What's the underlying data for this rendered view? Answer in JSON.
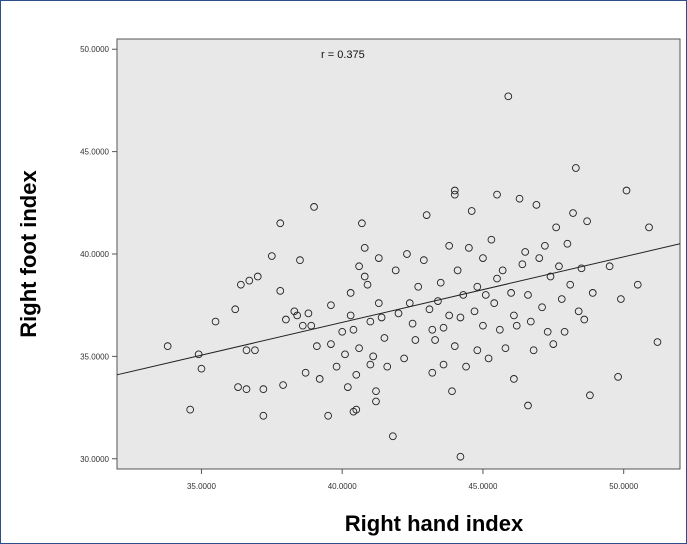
{
  "chart_data": {
    "type": "scatter",
    "title": "",
    "xlabel": "Right hand index",
    "ylabel": "Right foot index",
    "annotation": "r = 0.375",
    "xlim": [
      32,
      52
    ],
    "ylim": [
      29.5,
      50.5
    ],
    "xticks": [
      35,
      40,
      45,
      50
    ],
    "yticks": [
      30,
      35,
      40,
      45,
      50
    ],
    "xtick_labels": [
      "35.0000",
      "40.0000",
      "45.0000",
      "50.0000"
    ],
    "ytick_labels": [
      "30.0000",
      "35.0000",
      "40.0000",
      "45.0000",
      "50.0000"
    ],
    "grid": false,
    "fit_line": {
      "x": [
        32,
        52
      ],
      "y": [
        34.1,
        40.5
      ]
    },
    "colors": {
      "plot_bg": "#e8e8e8",
      "marker": "#222222",
      "line": "#222222",
      "frame": "#2c4f8c"
    },
    "points": [
      [
        33.8,
        35.5
      ],
      [
        34.6,
        32.4
      ],
      [
        34.9,
        35.1
      ],
      [
        35.0,
        34.4
      ],
      [
        35.5,
        36.7
      ],
      [
        36.2,
        37.3
      ],
      [
        36.3,
        33.5
      ],
      [
        36.4,
        38.5
      ],
      [
        36.6,
        35.3
      ],
      [
        36.6,
        33.4
      ],
      [
        36.7,
        38.7
      ],
      [
        36.9,
        35.3
      ],
      [
        37.0,
        38.9
      ],
      [
        37.2,
        32.1
      ],
      [
        37.2,
        33.4
      ],
      [
        37.5,
        39.9
      ],
      [
        37.8,
        41.5
      ],
      [
        37.8,
        38.2
      ],
      [
        37.9,
        33.6
      ],
      [
        38.0,
        36.8
      ],
      [
        38.3,
        37.2
      ],
      [
        38.4,
        37.0
      ],
      [
        38.5,
        39.7
      ],
      [
        38.6,
        36.5
      ],
      [
        38.7,
        34.2
      ],
      [
        38.8,
        37.1
      ],
      [
        38.9,
        36.5
      ],
      [
        39.0,
        42.3
      ],
      [
        39.1,
        35.5
      ],
      [
        39.2,
        33.9
      ],
      [
        39.5,
        32.1
      ],
      [
        39.6,
        37.5
      ],
      [
        39.6,
        35.6
      ],
      [
        39.8,
        34.5
      ],
      [
        40.0,
        36.2
      ],
      [
        40.1,
        35.1
      ],
      [
        40.2,
        33.5
      ],
      [
        40.3,
        38.1
      ],
      [
        40.3,
        37.0
      ],
      [
        40.4,
        36.3
      ],
      [
        40.4,
        32.3
      ],
      [
        40.5,
        32.4
      ],
      [
        40.5,
        34.1
      ],
      [
        40.6,
        39.4
      ],
      [
        40.6,
        35.4
      ],
      [
        40.7,
        41.5
      ],
      [
        40.8,
        40.3
      ],
      [
        40.8,
        38.9
      ],
      [
        40.9,
        38.5
      ],
      [
        41.0,
        36.7
      ],
      [
        41.0,
        34.6
      ],
      [
        41.1,
        35.0
      ],
      [
        41.2,
        33.3
      ],
      [
        41.2,
        32.8
      ],
      [
        41.3,
        39.8
      ],
      [
        41.3,
        37.6
      ],
      [
        41.4,
        36.9
      ],
      [
        41.5,
        35.9
      ],
      [
        41.6,
        34.5
      ],
      [
        41.8,
        31.1
      ],
      [
        41.9,
        39.2
      ],
      [
        42.0,
        37.1
      ],
      [
        42.2,
        34.9
      ],
      [
        42.3,
        40.0
      ],
      [
        42.4,
        37.6
      ],
      [
        42.5,
        36.6
      ],
      [
        42.6,
        35.8
      ],
      [
        42.7,
        38.4
      ],
      [
        42.9,
        39.7
      ],
      [
        43.0,
        41.9
      ],
      [
        43.1,
        37.3
      ],
      [
        43.2,
        36.3
      ],
      [
        43.2,
        34.2
      ],
      [
        43.3,
        35.8
      ],
      [
        43.4,
        37.7
      ],
      [
        43.5,
        38.6
      ],
      [
        43.6,
        36.4
      ],
      [
        43.6,
        34.6
      ],
      [
        43.8,
        40.4
      ],
      [
        43.8,
        37.0
      ],
      [
        43.9,
        33.3
      ],
      [
        44.0,
        35.5
      ],
      [
        44.0,
        43.1
      ],
      [
        44.0,
        42.9
      ],
      [
        44.1,
        39.2
      ],
      [
        44.2,
        36.9
      ],
      [
        44.2,
        30.1
      ],
      [
        44.3,
        38.0
      ],
      [
        44.4,
        34.5
      ],
      [
        44.5,
        40.3
      ],
      [
        44.6,
        42.1
      ],
      [
        44.7,
        37.2
      ],
      [
        44.8,
        35.3
      ],
      [
        44.8,
        38.4
      ],
      [
        45.0,
        39.8
      ],
      [
        45.0,
        36.5
      ],
      [
        45.1,
        38.0
      ],
      [
        45.2,
        34.9
      ],
      [
        45.3,
        40.7
      ],
      [
        45.4,
        37.6
      ],
      [
        45.5,
        38.8
      ],
      [
        45.5,
        42.9
      ],
      [
        45.6,
        36.3
      ],
      [
        45.7,
        39.2
      ],
      [
        45.8,
        35.4
      ],
      [
        45.9,
        47.7
      ],
      [
        46.0,
        38.1
      ],
      [
        46.1,
        37.0
      ],
      [
        46.1,
        33.9
      ],
      [
        46.2,
        36.5
      ],
      [
        46.3,
        42.7
      ],
      [
        46.4,
        39.5
      ],
      [
        46.5,
        40.1
      ],
      [
        46.6,
        32.6
      ],
      [
        46.6,
        38.0
      ],
      [
        46.7,
        36.7
      ],
      [
        46.8,
        35.3
      ],
      [
        46.9,
        42.4
      ],
      [
        47.0,
        39.8
      ],
      [
        47.1,
        37.4
      ],
      [
        47.2,
        40.4
      ],
      [
        47.3,
        36.2
      ],
      [
        47.4,
        38.9
      ],
      [
        47.5,
        35.6
      ],
      [
        47.6,
        41.3
      ],
      [
        47.7,
        39.4
      ],
      [
        47.8,
        37.8
      ],
      [
        47.9,
        36.2
      ],
      [
        48.0,
        40.5
      ],
      [
        48.1,
        38.5
      ],
      [
        48.2,
        42.0
      ],
      [
        48.3,
        44.2
      ],
      [
        48.4,
        37.2
      ],
      [
        48.5,
        39.3
      ],
      [
        48.6,
        36.8
      ],
      [
        48.7,
        41.6
      ],
      [
        48.8,
        33.1
      ],
      [
        48.9,
        38.1
      ],
      [
        49.5,
        39.4
      ],
      [
        49.8,
        34.0
      ],
      [
        49.9,
        37.8
      ],
      [
        50.1,
        43.1
      ],
      [
        50.5,
        38.5
      ],
      [
        50.9,
        41.3
      ],
      [
        51.2,
        35.7
      ]
    ]
  }
}
